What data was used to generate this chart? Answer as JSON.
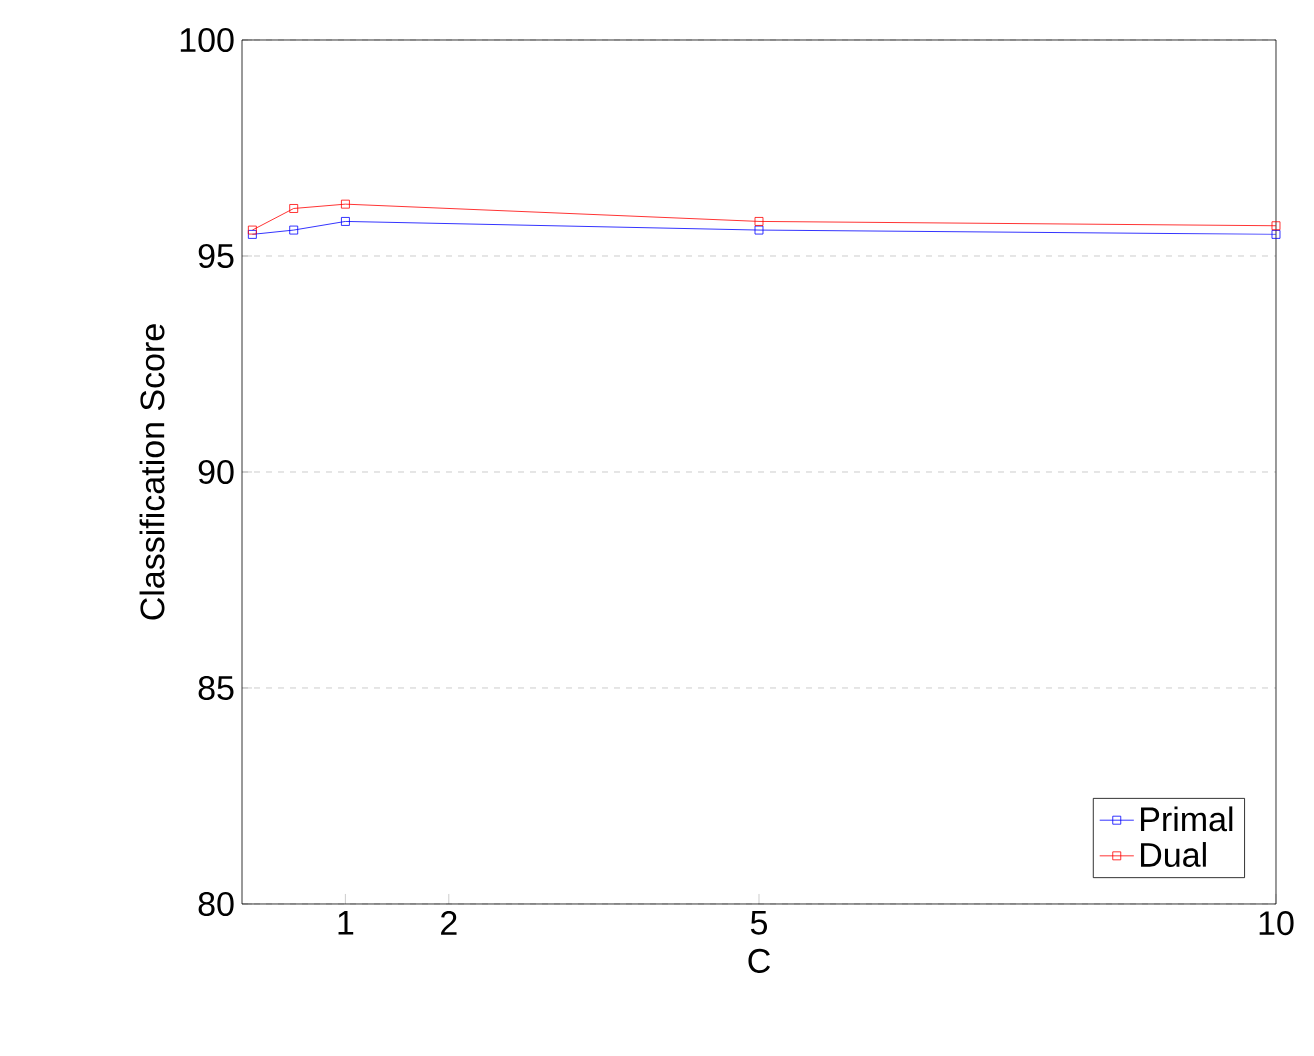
{
  "chart_data": {
    "type": "line",
    "xlabel": "C",
    "ylabel": "Classification Score",
    "x": [
      0.1,
      0.5,
      1,
      5,
      10
    ],
    "series": [
      {
        "name": "Primal",
        "color": "#0000ff",
        "values": [
          95.5,
          95.6,
          95.8,
          95.6,
          95.5
        ]
      },
      {
        "name": "Dual",
        "color": "#ff0000",
        "values": [
          95.6,
          96.1,
          96.2,
          95.8,
          95.7
        ]
      }
    ],
    "xlim": [
      0,
      10
    ],
    "xticks": [
      1,
      2,
      5,
      10
    ],
    "ylim": [
      80,
      100
    ],
    "yticks": [
      80,
      85,
      90,
      95,
      100
    ],
    "grid": "y",
    "legend": "bottom right",
    "marker": "square",
    "line_style": "solid"
  }
}
